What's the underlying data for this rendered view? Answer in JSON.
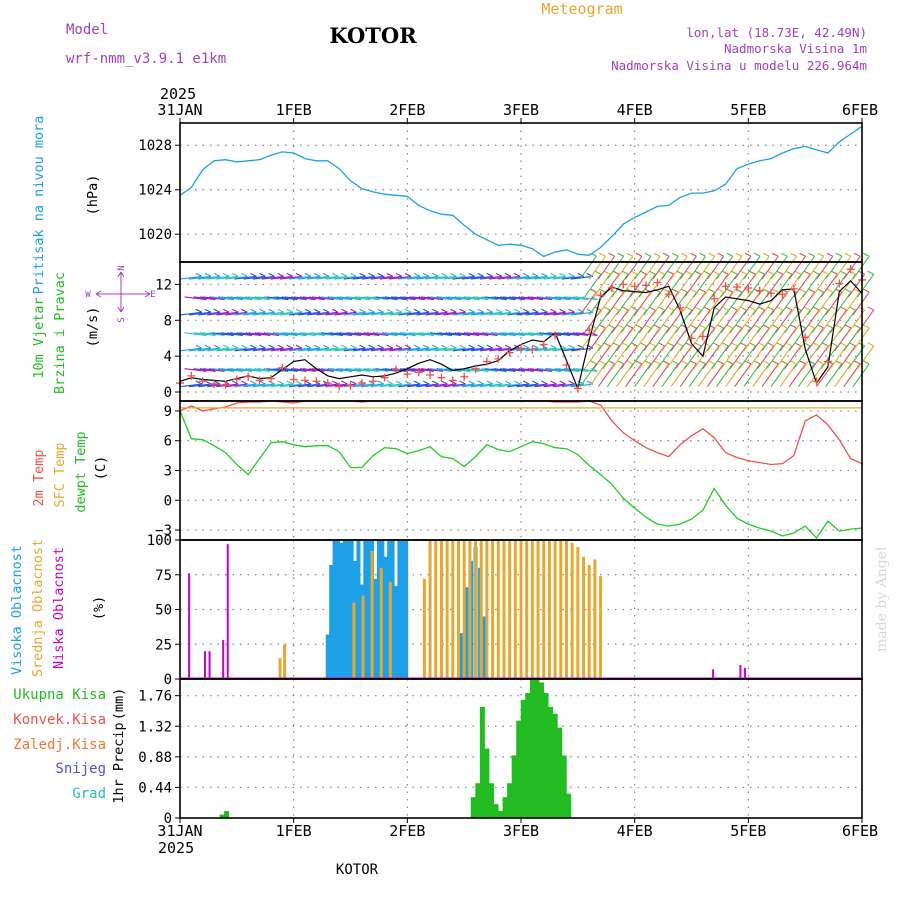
{
  "header": {
    "model_label": "Model",
    "model_name": "wrf-nmm_v3.9.1 e1km",
    "location": "KOTOR",
    "product": "Meteogram",
    "coords": "lon,lat (18.73E, 42.49N)",
    "elevation": "Nadmorska Visina 1m",
    "model_elevation": "Nadmorska Visina u modelu 226.964m",
    "year": "2025",
    "footer_location": "KOTOR",
    "credit": "made by Angel"
  },
  "colors": {
    "pressure": "#1ea0e6",
    "temp2m": "#f0504a",
    "sfc_temp": "#e8a830",
    "dewpoint": "#22cc22",
    "wind": "#000000",
    "gust": "#f0504a",
    "high_cloud": "#1ea0e6",
    "mid_cloud": "#e8a830",
    "low_cloud": "#c800c8",
    "total_precip": "#22bb22",
    "conv_precip": "#f0504a",
    "frozen_precip": "#f07830",
    "snow": "#5050e0",
    "hail": "#20c0b0",
    "dir_label": "#a040c0"
  },
  "chart_data": [
    {
      "type": "line",
      "panel": "pressure",
      "xlabel": "",
      "ylabel_lines": [
        "Pritisak na nivou mora"
      ],
      "unit": "(hPa)",
      "x_ticks": [
        "31JAN",
        "1FEB",
        "2FEB",
        "3FEB",
        "4FEB",
        "5FEB",
        "6FEB"
      ],
      "y_ticks": [
        1020,
        1024,
        1028
      ],
      "ylim": [
        1017.5,
        1030.0
      ],
      "grid": true,
      "x_days": [
        0.0,
        0.1,
        0.2,
        0.3,
        0.4,
        0.5,
        0.6,
        0.7,
        0.8,
        0.9,
        1.0,
        1.1,
        1.2,
        1.3,
        1.4,
        1.5,
        1.6,
        1.7,
        1.8,
        1.9,
        2.0,
        2.1,
        2.2,
        2.3,
        2.4,
        2.5,
        2.6,
        2.7,
        2.8,
        2.9,
        3.0,
        3.1,
        3.2,
        3.3,
        3.4,
        3.5,
        3.6,
        3.7,
        3.8,
        3.9,
        4.0,
        4.1,
        4.2,
        4.3,
        4.4,
        4.5,
        4.6,
        4.7,
        4.8,
        4.9,
        5.0,
        5.1,
        5.2,
        5.3,
        5.4,
        5.5,
        5.6,
        5.7,
        5.8,
        5.9,
        6.0
      ],
      "series": [
        {
          "values": [
            1023.5,
            1024.2,
            1025.8,
            1026.6,
            1026.7,
            1026.5,
            1026.6,
            1026.7,
            1027.1,
            1027.4,
            1027.3,
            1026.8,
            1026.6,
            1026.6,
            1025.9,
            1024.8,
            1024.1,
            1023.8,
            1023.6,
            1023.5,
            1023.4,
            1022.6,
            1022.1,
            1021.8,
            1021.7,
            1020.8,
            1020.0,
            1019.5,
            1019.0,
            1019.1,
            1019.0,
            1018.7,
            1018.0,
            1018.4,
            1018.6,
            1018.2,
            1018.1,
            1018.8,
            1019.8,
            1020.9,
            1021.5,
            1022.0,
            1022.5,
            1022.6,
            1023.3,
            1023.7,
            1023.7,
            1023.9,
            1024.5,
            1025.9,
            1026.3,
            1026.6,
            1026.8,
            1027.3,
            1027.7,
            1027.9,
            1027.6,
            1027.3,
            1028.3,
            1029.0,
            1029.7
          ]
        }
      ]
    },
    {
      "type": "line",
      "panel": "wind",
      "ylabel_lines": [
        "10m Vjetar",
        "Brzina i Pravac"
      ],
      "unit": "(m/s)",
      "direction_labels": [
        "N",
        "E",
        "S",
        "W"
      ],
      "y_ticks": [
        0,
        4,
        8,
        12
      ],
      "ylim": [
        -1.0,
        14.5
      ],
      "grid": true,
      "x_days": [
        0.0,
        0.1,
        0.2,
        0.3,
        0.4,
        0.5,
        0.6,
        0.7,
        0.8,
        0.9,
        1.0,
        1.1,
        1.2,
        1.3,
        1.4,
        1.5,
        1.6,
        1.7,
        1.8,
        1.9,
        2.0,
        2.1,
        2.2,
        2.3,
        2.4,
        2.5,
        2.6,
        2.7,
        2.8,
        2.9,
        3.0,
        3.1,
        3.2,
        3.3,
        3.4,
        3.5,
        3.6,
        3.7,
        3.8,
        3.9,
        4.0,
        4.1,
        4.2,
        4.3,
        4.4,
        4.5,
        4.6,
        4.7,
        4.8,
        4.9,
        5.0,
        5.1,
        5.2,
        5.3,
        5.4,
        5.5,
        5.6,
        5.7,
        5.8,
        5.9,
        6.0
      ],
      "series": [
        {
          "name": "speed",
          "values": [
            1.2,
            1.6,
            1.4,
            1.3,
            1.2,
            1.5,
            1.8,
            1.5,
            1.6,
            2.5,
            3.4,
            3.6,
            2.6,
            1.8,
            1.5,
            1.7,
            1.9,
            1.7,
            1.8,
            2.1,
            2.6,
            3.2,
            3.6,
            3.1,
            2.4,
            2.6,
            2.9,
            3.1,
            3.5,
            4.6,
            5.3,
            5.8,
            5.6,
            6.6,
            3.5,
            0.4,
            5.8,
            10.6,
            11.7,
            11.3,
            11.2,
            11.1,
            11.4,
            11.8,
            9.1,
            5.4,
            4.0,
            9.4,
            10.6,
            10.4,
            10.2,
            9.8,
            10.2,
            11.4,
            11.5,
            4.8,
            1.0,
            2.8,
            11.2,
            12.4,
            11.0
          ]
        },
        {
          "name": "gust",
          "values": [
            1.0,
            1.8,
            1.2,
            0.9,
            0.8,
            1.4,
            1.7,
            1.3,
            1.5,
            2.7,
            1.4,
            1.3,
            1.2,
            1.0,
            0.6,
            0.7,
            1.0,
            1.2,
            1.6,
            2.5,
            2.0,
            2.2,
            1.9,
            1.6,
            1.3,
            1.7,
            2.6,
            3.4,
            3.7,
            4.4,
            4.9,
            4.7,
            5.3,
            6.3,
            3.0,
            0.4,
            6.9,
            10.8,
            11.6,
            12.0,
            11.8,
            11.9,
            12.2,
            10.9,
            9.4,
            6.0,
            6.2,
            10.4,
            11.8,
            11.7,
            11.6,
            11.3,
            11.0,
            10.9,
            11.5,
            6.1,
            1.2,
            3.4,
            12.1,
            13.7,
            12.5
          ]
        }
      ]
    },
    {
      "type": "line",
      "panel": "temperature",
      "ylabel_lines": [
        "2m Temp",
        "SFC Temp",
        "dewpt Temp"
      ],
      "unit": "(C)",
      "y_ticks": [
        "9",
        "6",
        "3",
        "0",
        "−3"
      ],
      "ylim": [
        -4.0,
        10.0
      ],
      "grid": true,
      "x_days": [
        0.0,
        0.1,
        0.2,
        0.3,
        0.4,
        0.5,
        0.6,
        0.7,
        0.8,
        0.9,
        1.0,
        1.1,
        1.2,
        1.3,
        1.4,
        1.5,
        1.6,
        1.7,
        1.8,
        1.9,
        2.0,
        2.1,
        2.2,
        2.3,
        2.4,
        2.5,
        2.6,
        2.7,
        2.8,
        2.9,
        3.0,
        3.1,
        3.2,
        3.3,
        3.4,
        3.5,
        3.6,
        3.7,
        3.8,
        3.9,
        4.0,
        4.1,
        4.2,
        4.3,
        4.4,
        4.5,
        4.6,
        4.7,
        4.8,
        4.9,
        5.0,
        5.1,
        5.2,
        5.3,
        5.4,
        5.5,
        5.6,
        5.7,
        5.8,
        5.9,
        6.0
      ],
      "series": [
        {
          "name": "2m Temp",
          "values": [
            9.0,
            9.5,
            9.0,
            9.2,
            9.4,
            9.8,
            9.9,
            9.9,
            10.0,
            9.9,
            9.8,
            10.0,
            10.0,
            10.0,
            10.0,
            10.0,
            9.9,
            10.0,
            10.0,
            10.0,
            10.0,
            10.0,
            10.0,
            10.0,
            10.0,
            10.0,
            10.0,
            10.0,
            10.0,
            10.0,
            10.0,
            10.0,
            10.0,
            9.9,
            9.9,
            9.9,
            10.0,
            9.6,
            8.0,
            6.8,
            6.0,
            5.3,
            4.8,
            4.4,
            5.6,
            6.5,
            7.2,
            6.3,
            4.8,
            4.3,
            4.0,
            3.8,
            3.6,
            3.7,
            4.5,
            8.0,
            8.6,
            7.6,
            6.1,
            4.2,
            3.7
          ]
        },
        {
          "name": "SFC Temp",
          "values": [
            9.3,
            9.3,
            9.3,
            9.3,
            9.3,
            9.3,
            9.3,
            9.3,
            9.3,
            9.3,
            9.3,
            9.3,
            9.3,
            9.3,
            9.3,
            9.3,
            9.3,
            9.3,
            9.3,
            9.3,
            9.3,
            9.3,
            9.3,
            9.3,
            9.3,
            9.3,
            9.3,
            9.3,
            9.3,
            9.3,
            9.3,
            9.3,
            9.3,
            9.3,
            9.3,
            9.3,
            9.3,
            9.3,
            9.3,
            9.3,
            9.3,
            9.3,
            9.3,
            9.3,
            9.3,
            9.3,
            9.3,
            9.3,
            9.3,
            9.3,
            9.3,
            9.3,
            9.3,
            9.3,
            9.3,
            9.3,
            9.3,
            9.3,
            9.3,
            9.3,
            9.3
          ]
        },
        {
          "name": "dewpt Temp",
          "values": [
            9.0,
            6.2,
            6.1,
            5.5,
            4.8,
            3.6,
            2.6,
            4.2,
            5.8,
            5.9,
            5.6,
            5.4,
            5.5,
            5.5,
            4.9,
            3.3,
            3.3,
            4.5,
            5.3,
            5.2,
            4.7,
            5.0,
            5.4,
            4.4,
            4.2,
            3.4,
            4.4,
            5.6,
            5.1,
            4.9,
            5.4,
            5.9,
            5.7,
            5.3,
            5.2,
            4.6,
            3.5,
            2.6,
            1.6,
            0.2,
            -0.8,
            -1.7,
            -2.4,
            -2.6,
            -2.4,
            -1.9,
            -1.0,
            1.2,
            -0.5,
            -1.8,
            -2.4,
            -2.8,
            -3.1,
            -3.6,
            -3.3,
            -2.6,
            -3.8,
            -2.1,
            -3.1,
            -2.9,
            -2.8
          ]
        }
      ]
    },
    {
      "type": "bar",
      "panel": "cloud",
      "ylabel_lines": [
        "Visoka Oblacnost",
        "Srednja Oblacnost",
        "Niska Oblacnost"
      ],
      "unit": "(%)",
      "y_ticks": [
        0,
        25,
        50,
        75,
        100
      ],
      "ylim": [
        0,
        100
      ],
      "grid": true,
      "series": [
        {
          "name": "Visoka Oblacnost",
          "x_days": [
            1.3,
            1.33,
            1.36,
            1.39,
            1.42,
            1.45,
            1.48,
            1.51,
            1.54,
            1.57,
            1.6,
            1.63,
            1.66,
            1.69,
            1.72,
            1.75,
            1.78,
            1.81,
            1.84,
            1.87,
            1.9,
            1.93,
            1.96,
            1.99,
            2.48,
            2.52,
            2.56,
            2.6,
            2.64,
            2.68
          ],
          "values": [
            32,
            82,
            100,
            100,
            98,
            100,
            100,
            100,
            85,
            100,
            68,
            100,
            100,
            100,
            72,
            100,
            100,
            88,
            100,
            100,
            67,
            100,
            100,
            100,
            33,
            66,
            85,
            95,
            80,
            45
          ]
        },
        {
          "name": "Srednja Oblacnost",
          "x_days": [
            0.88,
            0.92,
            1.53,
            1.61,
            1.69,
            1.77,
            1.85,
            2.15,
            2.2,
            2.25,
            2.3,
            2.35,
            2.4,
            2.45,
            2.5,
            2.55,
            2.6,
            2.65,
            2.7,
            2.75,
            2.8,
            2.85,
            2.9,
            2.95,
            3.0,
            3.05,
            3.1,
            3.15,
            3.2,
            3.25,
            3.3,
            3.35,
            3.4,
            3.45,
            3.5,
            3.55,
            3.6,
            3.65,
            3.7
          ],
          "values": [
            15,
            25,
            55,
            60,
            92,
            80,
            70,
            72,
            100,
            100,
            100,
            100,
            100,
            100,
            100,
            100,
            100,
            100,
            100,
            100,
            100,
            100,
            100,
            100,
            100,
            100,
            100,
            100,
            100,
            100,
            100,
            100,
            100,
            98,
            95,
            88,
            82,
            86,
            74
          ]
        },
        {
          "name": "Niska Oblacnost",
          "x_days": [
            0.08,
            0.22,
            0.26,
            0.38,
            0.42,
            4.69,
            4.93,
            4.97
          ],
          "values": [
            76,
            20,
            20,
            28,
            97,
            7,
            10,
            8
          ]
        }
      ]
    },
    {
      "type": "bar",
      "panel": "precipitation",
      "ylabel_lines": [
        "1hr Precip"
      ],
      "unit": "(mm)",
      "legend": [
        "Ukupna Kisa",
        "Konvek.Kisa",
        "Zaledj.Kisa",
        "Snijeg",
        "Grad"
      ],
      "y_ticks": [
        "0",
        "0.44",
        "0.88",
        "1.32",
        "1.76"
      ],
      "ylim": [
        0,
        2.0
      ],
      "grid": true,
      "series": [
        {
          "name": "Ukupna Kisa",
          "x_days": [
            0.37,
            0.41,
            2.58,
            2.62,
            2.66,
            2.7,
            2.74,
            2.78,
            2.82,
            2.86,
            2.9,
            2.94,
            2.98,
            3.02,
            3.06,
            3.1,
            3.14,
            3.18,
            3.22,
            3.26,
            3.3,
            3.34,
            3.38,
            3.42
          ],
          "values": [
            0.05,
            0.1,
            0.3,
            0.5,
            1.6,
            1.0,
            0.5,
            0.2,
            0.1,
            0.3,
            0.5,
            0.9,
            1.4,
            1.7,
            1.8,
            2.0,
            2.0,
            1.95,
            1.8,
            1.6,
            1.5,
            1.3,
            0.9,
            0.35
          ]
        }
      ]
    }
  ]
}
